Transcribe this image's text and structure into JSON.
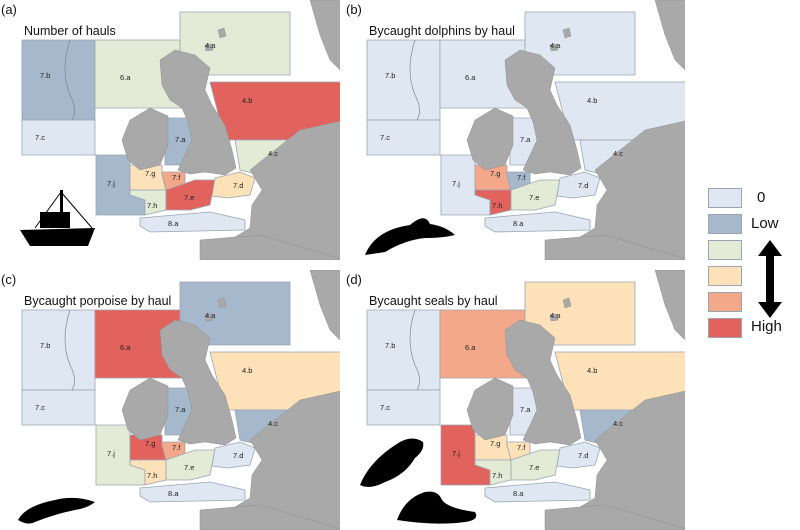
{
  "colors": {
    "sea_zero": "#dfe8f2",
    "low": "#a5b8cc",
    "mid1": "#e3ebd6",
    "mid2": "#fde2b9",
    "mid3": "#f3a88a",
    "high": "#e2625d",
    "land": "#a9a9a9",
    "border": "#9aa5b4"
  },
  "panels": [
    {
      "letter": "(a)",
      "title": "Number of hauls",
      "icon": "fishing-boat-icon",
      "areas": {
        "7.b": "low",
        "7.c": "zero",
        "6.a": "mid1",
        "4.a": "mid1",
        "4.b": "high",
        "7.a": "low",
        "4.c": "mid1",
        "7.j": "low",
        "7.g": "mid2",
        "7.f": "mid3",
        "7.h": "mid1",
        "7.e": "high",
        "7.d": "mid2",
        "8.a": "zero"
      }
    },
    {
      "letter": "(b)",
      "title": "Bycaught dolphins by haul",
      "icon": "dolphin-icon",
      "areas": {
        "7.b": "zero",
        "7.c": "zero",
        "6.a": "zero",
        "4.a": "zero",
        "4.b": "zero",
        "7.a": "zero",
        "4.c": "zero",
        "7.j": "zero",
        "7.g": "mid3",
        "7.f": "low",
        "7.h": "high",
        "7.e": "mid1",
        "7.d": "zero",
        "8.a": "zero"
      }
    },
    {
      "letter": "(c)",
      "title": "Bycaught porpoise by haul",
      "icon": "porpoise-icon",
      "areas": {
        "7.b": "zero",
        "7.c": "zero",
        "6.a": "high",
        "4.a": "low",
        "4.b": "mid2",
        "7.a": "low",
        "4.c": "low",
        "7.j": "mid1",
        "7.g": "high",
        "7.f": "mid3",
        "7.h": "mid2",
        "7.e": "mid1",
        "7.d": "zero",
        "8.a": "zero"
      }
    },
    {
      "letter": "(d)",
      "title": "Bycaught seals by haul",
      "icon": "seal-icon",
      "areas": {
        "7.b": "zero",
        "7.c": "zero",
        "6.a": "mid3",
        "4.a": "mid2",
        "4.b": "mid2",
        "7.a": "zero",
        "4.c": "low",
        "7.j": "high",
        "7.g": "mid2",
        "7.f": "mid2",
        "7.h": "mid1",
        "7.e": "mid1",
        "7.d": "zero",
        "8.a": "zero"
      }
    }
  ],
  "legend": {
    "entries": [
      {
        "label": "0",
        "level": "zero"
      },
      {
        "label": "Low",
        "level": "low"
      },
      {
        "label": "",
        "level": "mid1"
      },
      {
        "label": "",
        "level": "mid2"
      },
      {
        "label": "",
        "level": "mid3"
      },
      {
        "label": "High",
        "level": "high"
      }
    ],
    "arrow_icon": "double-arrow-icon"
  }
}
